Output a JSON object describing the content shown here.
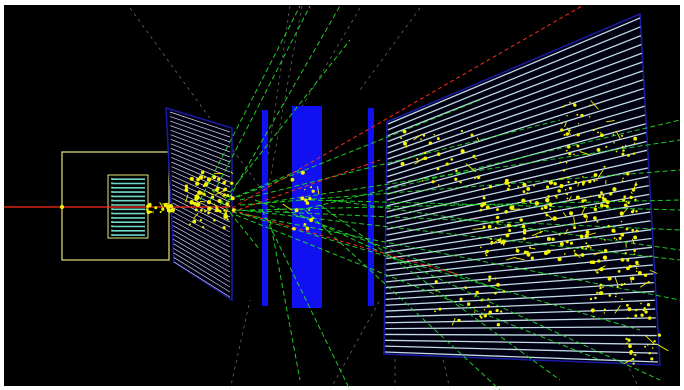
{
  "scene": {
    "description_visible_text": "",
    "colors": {
      "background": "#000000",
      "frame": "#ffffff",
      "beam_track": "#ff2a1a",
      "gamma_track": "#22e02a",
      "hit_deposit": "#f4f400",
      "target_box": "#e6e47a",
      "detector_outline": "#1a1aa8",
      "scintillator_plane": "#ffffff",
      "magnet_block": "#1010f0",
      "target_core": "#6fd6c8",
      "charged_track": "#e8e8e8"
    },
    "icons": [
      "beam-line",
      "target-chamber",
      "tracking-detector",
      "magnet-plates",
      "calorimeter-stack",
      "particle-tracks",
      "energy-deposits"
    ]
  }
}
